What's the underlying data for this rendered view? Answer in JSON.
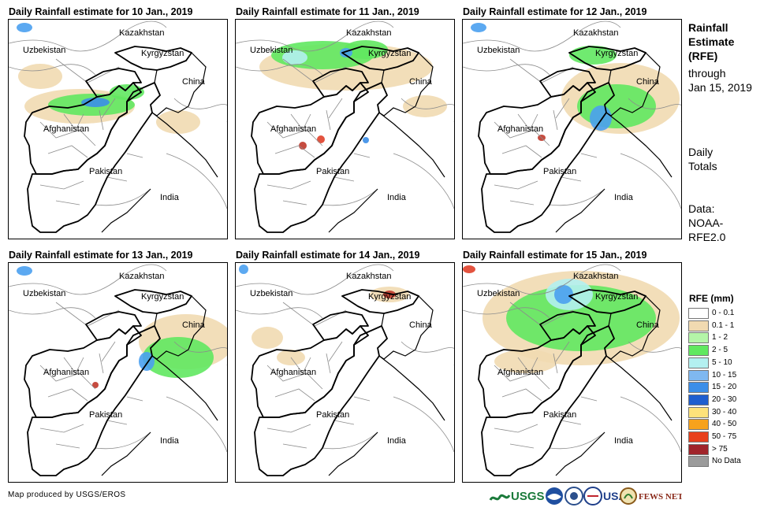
{
  "panels": [
    {
      "title": "Daily Rainfall estimate for 10 Jan., 2019",
      "rain": [
        {
          "cx": 90,
          "cy": 110,
          "rx": 70,
          "ry": 22,
          "c": "#f1dab1"
        },
        {
          "cx": 40,
          "cy": 72,
          "rx": 28,
          "ry": 16,
          "c": "#f1dab1"
        },
        {
          "cx": 215,
          "cy": 130,
          "rx": 28,
          "ry": 15,
          "c": "#f1dab1"
        },
        {
          "cx": 105,
          "cy": 108,
          "rx": 55,
          "ry": 14,
          "c": "#60e860"
        },
        {
          "cx": 150,
          "cy": 92,
          "rx": 22,
          "ry": 10,
          "c": "#60e860"
        },
        {
          "cx": 110,
          "cy": 105,
          "rx": 18,
          "ry": 6,
          "c": "#3b8ee8"
        },
        {
          "cx": 20,
          "cy": 10,
          "rx": 10,
          "ry": 6,
          "c": "#4aa0f0"
        }
      ]
    },
    {
      "title": "Daily Rainfall estimate for 11 Jan., 2019",
      "rain": [
        {
          "cx": 140,
          "cy": 60,
          "rx": 110,
          "ry": 30,
          "c": "#f1dab1"
        },
        {
          "cx": 110,
          "cy": 45,
          "rx": 65,
          "ry": 18,
          "c": "#60e860"
        },
        {
          "cx": 165,
          "cy": 38,
          "rx": 28,
          "ry": 12,
          "c": "#60e860"
        },
        {
          "cx": 75,
          "cy": 48,
          "rx": 16,
          "ry": 9,
          "c": "#b3f0f0"
        },
        {
          "cx": 140,
          "cy": 42,
          "rx": 8,
          "ry": 6,
          "c": "#4aa0f0"
        },
        {
          "cx": 240,
          "cy": 110,
          "rx": 28,
          "ry": 14,
          "c": "#f1dab1"
        },
        {
          "cx": 85,
          "cy": 160,
          "rx": 5,
          "ry": 5,
          "c": "#c0392b"
        },
        {
          "cx": 108,
          "cy": 152,
          "rx": 5,
          "ry": 5,
          "c": "#e0402a"
        },
        {
          "cx": 165,
          "cy": 153,
          "rx": 4,
          "ry": 4,
          "c": "#3b8ee8"
        }
      ]
    },
    {
      "title": "Daily Rainfall estimate for 12 Jan., 2019",
      "rain": [
        {
          "cx": 200,
          "cy": 100,
          "rx": 75,
          "ry": 45,
          "c": "#f1dab1"
        },
        {
          "cx": 195,
          "cy": 110,
          "rx": 50,
          "ry": 28,
          "c": "#60e860"
        },
        {
          "cx": 175,
          "cy": 125,
          "rx": 14,
          "ry": 16,
          "c": "#4aa0f0"
        },
        {
          "cx": 165,
          "cy": 45,
          "rx": 30,
          "ry": 12,
          "c": "#60e860"
        },
        {
          "cx": 100,
          "cy": 150,
          "rx": 5,
          "ry": 4,
          "c": "#c0392b"
        },
        {
          "cx": 20,
          "cy": 10,
          "rx": 10,
          "ry": 6,
          "c": "#4aa0f0"
        }
      ]
    },
    {
      "title": "Daily Rainfall estimate for 13 Jan., 2019",
      "rain": [
        {
          "cx": 225,
          "cy": 100,
          "rx": 60,
          "ry": 35,
          "c": "#f1dab1"
        },
        {
          "cx": 215,
          "cy": 120,
          "rx": 45,
          "ry": 26,
          "c": "#60e860"
        },
        {
          "cx": 175,
          "cy": 125,
          "rx": 10,
          "ry": 12,
          "c": "#4aa0f0"
        },
        {
          "cx": 110,
          "cy": 155,
          "rx": 4,
          "ry": 4,
          "c": "#c0392b"
        },
        {
          "cx": 20,
          "cy": 10,
          "rx": 10,
          "ry": 6,
          "c": "#4aa0f0"
        }
      ]
    },
    {
      "title": "Daily Rainfall estimate for 14 Jan., 2019",
      "rain": [
        {
          "cx": 40,
          "cy": 95,
          "rx": 20,
          "ry": 14,
          "c": "#f1dab1"
        },
        {
          "cx": 70,
          "cy": 120,
          "rx": 18,
          "ry": 10,
          "c": "#f1dab1"
        },
        {
          "cx": 195,
          "cy": 40,
          "rx": 25,
          "ry": 10,
          "c": "#f1dab1"
        },
        {
          "cx": 195,
          "cy": 40,
          "rx": 8,
          "ry": 5,
          "c": "#c0392b"
        },
        {
          "cx": 10,
          "cy": 8,
          "rx": 6,
          "ry": 6,
          "c": "#4aa0f0"
        }
      ]
    },
    {
      "title": "Daily Rainfall estimate for 15 Jan., 2019",
      "rain": [
        {
          "cx": 150,
          "cy": 70,
          "rx": 125,
          "ry": 60,
          "c": "#f1dab1"
        },
        {
          "cx": 150,
          "cy": 70,
          "rx": 95,
          "ry": 42,
          "c": "#60e860"
        },
        {
          "cx": 135,
          "cy": 40,
          "rx": 30,
          "ry": 20,
          "c": "#b3f0f0"
        },
        {
          "cx": 128,
          "cy": 40,
          "rx": 12,
          "ry": 12,
          "c": "#4aa0f0"
        },
        {
          "cx": 80,
          "cy": 125,
          "rx": 40,
          "ry": 15,
          "c": "#f1dab1"
        },
        {
          "cx": 8,
          "cy": 8,
          "rx": 8,
          "ry": 5,
          "c": "#e0402a"
        }
      ]
    }
  ],
  "map_labels": {
    "kazakhstan": "Kazakhstan",
    "uzbekistan": "Uzbekistan",
    "kyrgyzstan": "Kyrgyzstan",
    "china": "China",
    "afghanistan": "Afghanistan",
    "pakistan": "Pakistan",
    "india": "India"
  },
  "sidebar": {
    "title_lines": [
      "Rainfall",
      "Estimate",
      "(RFE)"
    ],
    "through_lines": [
      "through",
      "Jan 15, 2019"
    ],
    "daily_lines": [
      "Daily",
      "Totals"
    ],
    "data_lines": [
      "Data:",
      "NOAA-",
      "RFE2.0"
    ]
  },
  "legend": {
    "title": "RFE (mm)",
    "items": [
      {
        "label": "0 - 0.1",
        "color": "#ffffff"
      },
      {
        "label": "0.1 - 1",
        "color": "#f1dab1"
      },
      {
        "label": "1 - 2",
        "color": "#b4f5a8"
      },
      {
        "label": "2 - 5",
        "color": "#60e860"
      },
      {
        "label": "5 - 10",
        "color": "#b3f0f0"
      },
      {
        "label": "10 - 15",
        "color": "#7fb8f0"
      },
      {
        "label": "15 - 20",
        "color": "#3b8ee8"
      },
      {
        "label": "20 - 30",
        "color": "#1e5ecf"
      },
      {
        "label": "30 - 40",
        "color": "#fde27a"
      },
      {
        "label": "40 - 50",
        "color": "#f7a21c"
      },
      {
        "label": "50 - 75",
        "color": "#e8401c"
      },
      {
        "label": "> 75",
        "color": "#a0242a"
      },
      {
        "label": "No Data",
        "color": "#9b9b9b"
      }
    ]
  },
  "credit": "Map produced by USGS/EROS",
  "logos": {
    "usgs": "USGS",
    "usaid": "USAID",
    "fews": "FEWS NET"
  }
}
